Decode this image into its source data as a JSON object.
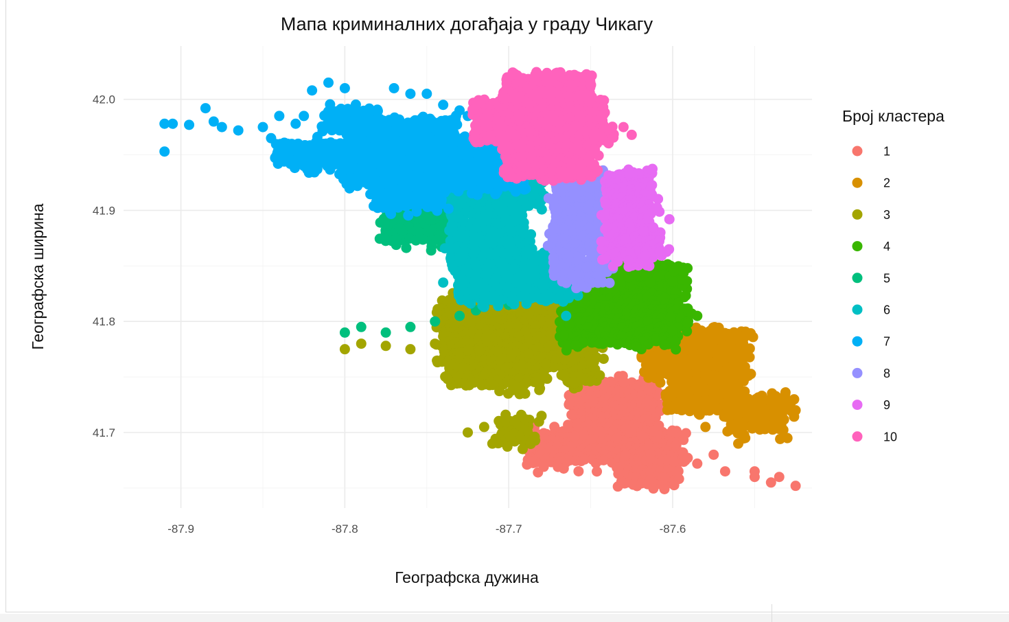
{
  "chart_data": {
    "type": "scatter",
    "title": "Мапа криминалних догађаја у граду Чикагу",
    "xlabel": "Географска дужина",
    "ylabel": "Географска ширина",
    "xlim": [
      -87.935,
      -87.515
    ],
    "ylim": [
      41.632,
      42.048
    ],
    "x_ticks": [
      -87.9,
      -87.8,
      -87.7,
      -87.6
    ],
    "x_tick_labels": [
      "-87.9",
      "-87.8",
      "-87.7",
      "-87.6"
    ],
    "y_ticks": [
      41.7,
      41.8,
      41.9,
      42.0
    ],
    "y_tick_labels": [
      "41.7",
      "41.8",
      "41.9",
      "42.0"
    ],
    "grid": true,
    "legend": {
      "title": "Број кластера",
      "position": "right",
      "entries": [
        "1",
        "2",
        "3",
        "4",
        "5",
        "6",
        "7",
        "8",
        "9",
        "10"
      ]
    },
    "series": [
      {
        "name": "1",
        "color": "#F8766D",
        "regions": [
          [
            -87.685,
            41.7,
            -87.595,
            41.67
          ],
          [
            -87.66,
            41.745,
            -87.61,
            41.7
          ],
          [
            -87.63,
            41.675,
            -87.6,
            41.65
          ]
        ],
        "points": [
          [
            -87.585,
            41.672
          ],
          [
            -87.568,
            41.665
          ],
          [
            -87.55,
            41.66
          ],
          [
            -87.54,
            41.655
          ],
          [
            -87.525,
            41.652
          ],
          [
            -87.575,
            41.68
          ],
          [
            -87.55,
            41.665
          ],
          [
            -87.535,
            41.66
          ]
        ]
      },
      {
        "name": "2",
        "color": "#D89000",
        "regions": [
          [
            -87.615,
            41.79,
            -87.555,
            41.75
          ],
          [
            -87.6,
            41.76,
            -87.56,
            41.72
          ],
          [
            -87.565,
            41.73,
            -87.53,
            41.7
          ]
        ],
        "points": [
          [
            -87.53,
            41.695
          ],
          [
            -87.525,
            41.72
          ],
          [
            -87.58,
            41.705
          ],
          [
            -87.56,
            41.69
          ]
        ]
      },
      {
        "name": "3",
        "color": "#A3A500",
        "regions": [
          [
            -87.74,
            41.82,
            -87.66,
            41.76
          ],
          [
            -87.735,
            41.77,
            -87.68,
            41.74
          ],
          [
            -87.665,
            41.78,
            -87.645,
            41.745
          ],
          [
            -87.705,
            41.71,
            -87.685,
            41.69
          ]
        ],
        "points": [
          [
            -87.8,
            41.775
          ],
          [
            -87.79,
            41.78
          ],
          [
            -87.775,
            41.778
          ],
          [
            -87.76,
            41.775
          ],
          [
            -87.745,
            41.78
          ],
          [
            -87.715,
            41.705
          ],
          [
            -87.725,
            41.7
          ],
          [
            -87.71,
            41.69
          ],
          [
            -87.69,
            41.712
          ],
          [
            -87.68,
            41.715
          ],
          [
            -87.69,
            41.735
          ]
        ]
      },
      {
        "name": "4",
        "color": "#39B600",
        "regions": [
          [
            -87.665,
            41.85,
            -87.595,
            41.78
          ],
          [
            -87.64,
            41.85,
            -87.6,
            41.84
          ],
          [
            -87.6,
            41.81,
            -87.59,
            41.8
          ]
        ],
        "points": [
          [
            -87.585,
            41.805
          ],
          [
            -87.6,
            41.792
          ]
        ]
      },
      {
        "name": "5",
        "color": "#00BF7D",
        "regions": [
          [
            -87.775,
            41.9,
            -87.735,
            41.87
          ]
        ],
        "points": [
          [
            -87.8,
            41.79
          ],
          [
            -87.79,
            41.795
          ],
          [
            -87.775,
            41.79
          ],
          [
            -87.76,
            41.795
          ],
          [
            -87.745,
            41.8
          ],
          [
            -87.72,
            41.81
          ],
          [
            -87.73,
            41.805
          ],
          [
            -87.715,
            41.815
          ],
          [
            -87.7,
            41.815
          ]
        ]
      },
      {
        "name": "6",
        "color": "#00BFC4",
        "regions": [
          [
            -87.735,
            41.92,
            -87.69,
            41.85
          ],
          [
            -87.73,
            41.86,
            -87.66,
            41.82
          ],
          [
            -87.71,
            41.93,
            -87.68,
            41.9
          ]
        ],
        "points": [
          [
            -87.74,
            41.835
          ],
          [
            -87.725,
            41.82
          ],
          [
            -87.715,
            41.813
          ],
          [
            -87.665,
            41.805
          ]
        ]
      },
      {
        "name": "7",
        "color": "#00B0F6",
        "regions": [
          [
            -87.8,
            41.98,
            -87.73,
            41.92
          ],
          [
            -87.78,
            41.93,
            -87.74,
            41.9
          ],
          [
            -87.84,
            41.96,
            -87.8,
            41.94
          ],
          [
            -87.81,
            41.99,
            -87.78,
            41.97
          ],
          [
            -87.74,
            41.96,
            -87.69,
            41.92
          ]
        ],
        "points": [
          [
            -87.91,
            41.978
          ],
          [
            -87.905,
            41.978
          ],
          [
            -87.895,
            41.977
          ],
          [
            -87.885,
            41.992
          ],
          [
            -87.88,
            41.98
          ],
          [
            -87.875,
            41.975
          ],
          [
            -87.865,
            41.972
          ],
          [
            -87.91,
            41.953
          ],
          [
            -87.85,
            41.975
          ],
          [
            -87.845,
            41.965
          ],
          [
            -87.84,
            41.985
          ],
          [
            -87.835,
            41.96
          ],
          [
            -87.83,
            41.978
          ],
          [
            -87.825,
            41.985
          ],
          [
            -87.82,
            42.008
          ],
          [
            -87.81,
            42.015
          ],
          [
            -87.8,
            42.01
          ],
          [
            -87.77,
            42.01
          ],
          [
            -87.76,
            42.005
          ],
          [
            -87.75,
            42.005
          ],
          [
            -87.74,
            41.995
          ],
          [
            -87.73,
            41.99
          ],
          [
            -87.725,
            41.985
          ],
          [
            -87.83,
            41.945
          ],
          [
            -87.825,
            41.94
          ]
        ]
      },
      {
        "name": "8",
        "color": "#9590FF",
        "regions": [
          [
            -87.672,
            41.93,
            -87.638,
            41.84
          ],
          [
            -87.66,
            41.845,
            -87.645,
            41.835
          ]
        ],
        "points": []
      },
      {
        "name": "9",
        "color": "#E76BF3",
        "regions": [
          [
            -87.64,
            41.932,
            -87.612,
            41.855
          ],
          [
            -87.628,
            41.88,
            -87.605,
            41.86
          ]
        ],
        "points": [
          [
            -87.602,
            41.892
          ],
          [
            -87.608,
            41.863
          ]
        ]
      },
      {
        "name": "10",
        "color": "#FF62BC",
        "regions": [
          [
            -87.718,
            41.998,
            -87.64,
            41.96
          ],
          [
            -87.7,
            41.965,
            -87.648,
            41.93
          ],
          [
            -87.7,
            42.02,
            -87.65,
            42.0
          ]
        ],
        "points": [
          [
            -87.63,
            41.975
          ],
          [
            -87.625,
            41.968
          ],
          [
            -87.66,
            42.022
          ],
          [
            -87.655,
            42.02
          ]
        ]
      }
    ]
  }
}
